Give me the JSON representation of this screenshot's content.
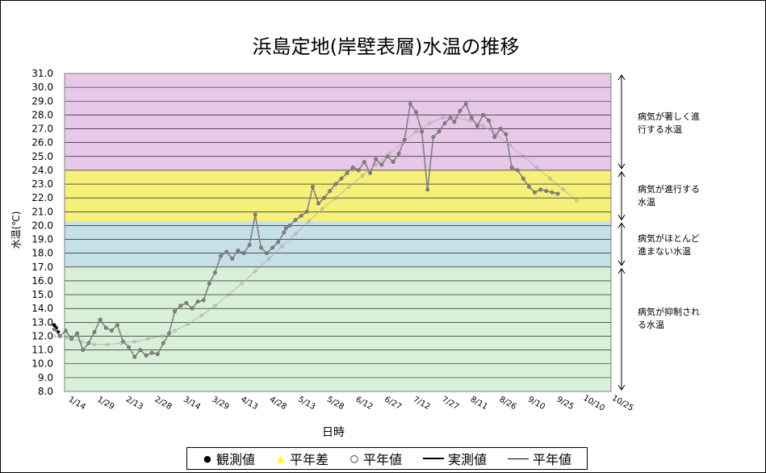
{
  "chart_data": {
    "type": "scatter",
    "title": "浜島定地(岸壁表層)水温の推移",
    "xlabel": "日時",
    "ylabel": "水温(℃)",
    "ylim": [
      8.0,
      31.0
    ],
    "y_ticks": [
      "8.0",
      "9.0",
      "10.0",
      "11.0",
      "12.0",
      "13.0",
      "14.0",
      "15.0",
      "16.0",
      "17.0",
      "18.0",
      "19.0",
      "20.0",
      "21.0",
      "22.0",
      "23.0",
      "24.0",
      "25.0",
      "26.0",
      "27.0",
      "28.0",
      "29.0",
      "30.0",
      "31.0"
    ],
    "x_ticks": [
      "1/14",
      "1/29",
      "2/13",
      "2/28",
      "3/14",
      "3/29",
      "4/13",
      "4/28",
      "5/13",
      "5/28",
      "6/12",
      "6/27",
      "7/12",
      "7/27",
      "8/11",
      "8/26",
      "9/10",
      "9/25",
      "10/10",
      "10/25"
    ],
    "x_unit": "day_of_year",
    "grid": true,
    "legend_position": "bottom",
    "zones": [
      {
        "label": "病気が著しく進行する水温",
        "from": 24.0,
        "to": 31.0,
        "color": "#e8c8e8"
      },
      {
        "label": "病気が進行する水温",
        "from": 20.3,
        "to": 24.0,
        "color": "#f5f07a"
      },
      {
        "label": "病気がほとんど進まない水温",
        "from": 17.0,
        "to": 20.3,
        "color": "#c6e0e8"
      },
      {
        "label": "病気が抑制される水温",
        "from": 8.0,
        "to": 17.0,
        "color": "#d8f0d8"
      }
    ],
    "series": [
      {
        "name": "観測値",
        "style": "points",
        "color": "#000000",
        "x": [
          1,
          2,
          3
        ],
        "y": [
          12.8,
          12.6,
          12.3
        ]
      },
      {
        "name": "平年差",
        "style": "points",
        "color": "#ffff00",
        "x": [],
        "y": []
      },
      {
        "name": "平年値",
        "style": "hollow-points",
        "color": "#808080",
        "x": [
          1,
          8,
          15,
          22,
          29,
          36,
          43,
          50,
          57,
          64,
          71,
          78,
          85,
          92,
          99,
          106,
          113,
          120,
          127,
          134,
          141,
          148,
          155,
          162,
          169,
          176,
          183,
          190,
          197,
          204,
          211,
          218,
          225,
          232,
          239,
          246,
          253,
          260,
          267,
          274
        ],
        "y": [
          12.0,
          11.9,
          11.6,
          11.4,
          11.4,
          11.5,
          11.6,
          11.8,
          12.0,
          12.4,
          12.9,
          13.5,
          14.2,
          15.0,
          15.8,
          16.7,
          17.6,
          18.5,
          19.4,
          20.3,
          21.2,
          22.0,
          22.8,
          23.6,
          24.4,
          25.2,
          26.0,
          26.8,
          27.4,
          27.8,
          27.8,
          27.6,
          27.2,
          26.6,
          25.8,
          25.0,
          24.2,
          23.4,
          22.6,
          21.8
        ]
      },
      {
        "name": "実測値",
        "style": "line",
        "color": "#808080",
        "x": [
          1,
          4,
          7,
          10,
          13,
          16,
          19,
          22,
          25,
          28,
          31,
          34,
          37,
          40,
          43,
          46,
          49,
          52,
          55,
          58,
          61,
          64,
          67,
          70,
          73,
          76,
          79,
          82,
          85,
          88,
          91,
          94,
          97,
          100,
          103,
          106,
          109,
          112,
          115,
          118,
          121,
          122,
          124,
          127,
          130,
          133,
          136,
          139,
          142,
          145,
          148,
          151,
          154,
          157,
          160,
          163,
          166,
          169,
          172,
          175,
          178,
          181,
          184,
          187,
          190,
          193,
          196,
          199,
          202,
          205,
          208,
          210,
          213,
          216,
          219,
          222,
          225,
          228,
          231,
          234,
          237,
          240,
          243,
          246,
          249,
          252,
          255,
          258,
          261,
          264
        ],
        "y": [
          12.5,
          12.0,
          12.4,
          11.8,
          12.2,
          11.0,
          11.5,
          12.3,
          13.2,
          12.6,
          12.4,
          12.8,
          11.6,
          11.2,
          10.5,
          11.0,
          10.6,
          10.8,
          10.7,
          11.5,
          12.2,
          13.8,
          14.2,
          14.4,
          14.0,
          14.5,
          14.6,
          15.8,
          16.6,
          17.8,
          18.1,
          17.6,
          18.2,
          18.0,
          18.6,
          20.8,
          18.4,
          18.0,
          18.4,
          18.8,
          19.5,
          19.8,
          20.0,
          20.4,
          20.7,
          21.0,
          22.8,
          21.6,
          22.0,
          22.5,
          23.0,
          23.4,
          23.8,
          24.2,
          24.0,
          24.6,
          23.8,
          24.8,
          24.4,
          25.0,
          24.6,
          25.2,
          26.2,
          28.8,
          28.2,
          26.8,
          22.6,
          26.4,
          26.8,
          27.4,
          27.8,
          27.5,
          28.3,
          28.8,
          27.8,
          27.2,
          28.0,
          27.6,
          26.4,
          27.0,
          26.6,
          24.2,
          24.0,
          23.4,
          22.8,
          22.4,
          22.6,
          22.5,
          22.4,
          22.3
        ]
      },
      {
        "name": "平年値",
        "style": "line",
        "color": "#a0a0a0",
        "x": [
          1,
          8,
          15,
          22,
          29,
          36,
          43,
          50,
          57,
          64,
          71,
          78,
          85,
          92,
          99,
          106,
          113,
          120,
          127,
          134,
          141,
          148,
          155,
          162,
          169,
          176,
          183,
          190,
          197,
          204,
          211,
          218,
          225,
          232,
          239,
          246,
          253,
          260,
          267,
          274
        ],
        "y": [
          12.0,
          11.9,
          11.6,
          11.4,
          11.4,
          11.5,
          11.6,
          11.8,
          12.0,
          12.4,
          12.9,
          13.5,
          14.2,
          15.0,
          15.8,
          16.7,
          17.6,
          18.5,
          19.4,
          20.3,
          21.2,
          22.0,
          22.8,
          23.6,
          24.4,
          25.2,
          26.0,
          26.8,
          27.4,
          27.8,
          27.8,
          27.6,
          27.2,
          26.6,
          25.8,
          25.0,
          24.2,
          23.4,
          22.6,
          21.8
        ]
      }
    ]
  },
  "legend": [
    {
      "label": "観測値",
      "symbol": "●",
      "color": "#000000"
    },
    {
      "label": "平年差",
      "symbol": "▲",
      "color": "#ffff00"
    },
    {
      "label": "平年値",
      "symbol": "○",
      "color": "#000000"
    },
    {
      "label": "実測値",
      "symbol": "line",
      "color": "#000000"
    },
    {
      "label": "平年値",
      "symbol": "line-thin",
      "color": "#000000"
    }
  ],
  "zone_labels": [
    {
      "line1": "病気が著しく進",
      "line2": "行する水温"
    },
    {
      "line1": "病気が進行する",
      "line2": "水温"
    },
    {
      "line1": "病気がほとんど",
      "line2": "進まない水温"
    },
    {
      "line1": "病気が抑制され",
      "line2": "る水温"
    }
  ]
}
